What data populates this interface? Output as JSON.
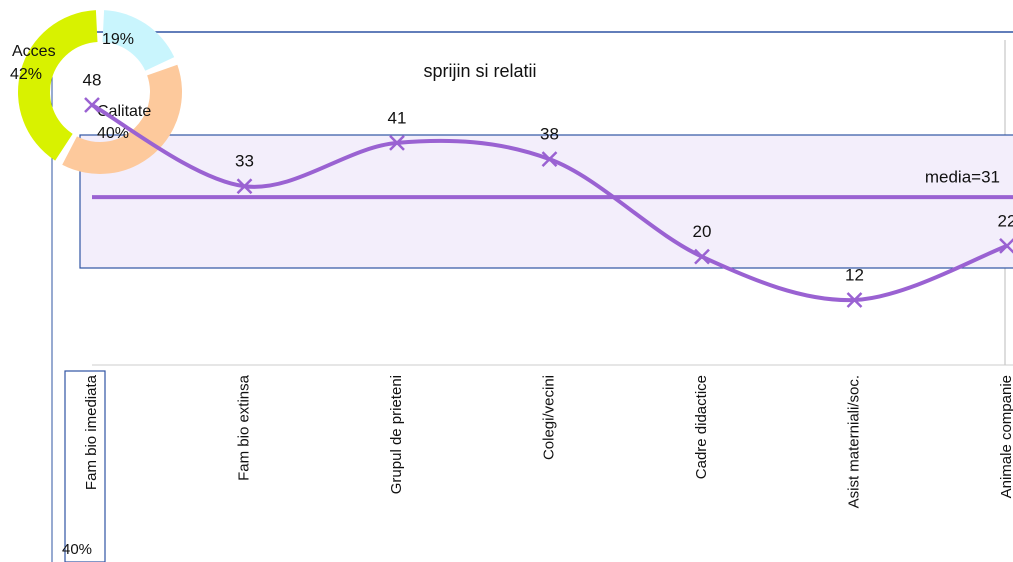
{
  "chart_data": [
    {
      "type": "pie",
      "categories": [
        "Acces",
        null,
        "Calitate"
      ],
      "values": [
        42,
        19,
        40
      ],
      "value_labels": [
        "42%",
        "19%",
        "40%"
      ],
      "colors": [
        "#d8f200",
        "#c9f5fd",
        "#fdc99c"
      ]
    },
    {
      "type": "line",
      "title": "sprijin si relatii",
      "categories": [
        "Fam bio imediata",
        "Fam bio extinsa",
        "Grupul de prieteni",
        "Colegi/vecini",
        "Cadre didactice",
        "Asist materniali/soc.",
        "Animale companie"
      ],
      "values": [
        48,
        33,
        41,
        38,
        20,
        12,
        22
      ],
      "color": "#9a62d2",
      "ylim": [
        0,
        60
      ],
      "mean": 31,
      "mean_label": "media=31"
    }
  ],
  "annotation": "40%"
}
